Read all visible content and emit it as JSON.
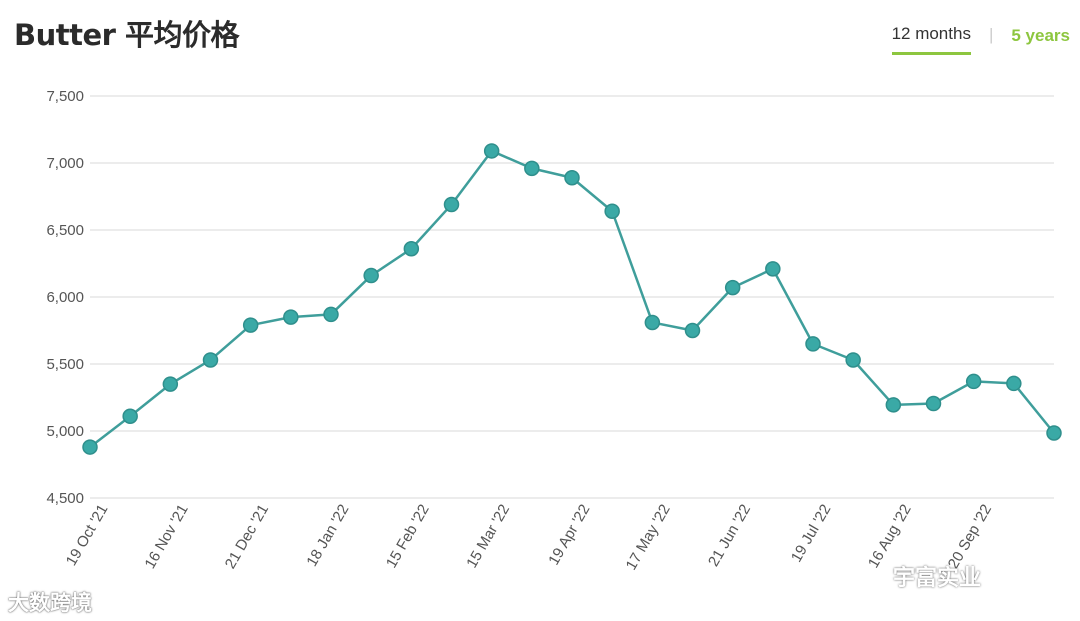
{
  "header": {
    "title": "Butter 平均价格",
    "tabs": [
      {
        "label": "12 months",
        "active": true
      },
      {
        "label": "5 years",
        "active": false
      }
    ]
  },
  "colors": {
    "series": "#3aa9a6",
    "series_line": "#3f9e9b",
    "grid": "#e6e6e6",
    "accent": "#8dc63f"
  },
  "watermarks": {
    "left": "大数跨境",
    "right": "宇富实业"
  },
  "chart_data": {
    "type": "line",
    "title": "Butter 平均价格",
    "xlabel": "",
    "ylabel": "",
    "ylim": [
      4500,
      7500
    ],
    "yticks": [
      4500,
      5000,
      5500,
      6000,
      6500,
      7000,
      7500
    ],
    "ytick_labels": [
      "4,500",
      "5,000",
      "5,500",
      "6,000",
      "6,500",
      "7,000",
      "7,500"
    ],
    "xtick_labels": [
      "19 Oct '21",
      "16 Nov '21",
      "21 Dec '21",
      "18 Jan '22",
      "15 Feb '22",
      "15 Mar '22",
      "19 Apr '22",
      "17 May '22",
      "21 Jun '22",
      "19 Jul '22",
      "16 Aug '22",
      "20 Sep '22"
    ],
    "grid": true,
    "series": [
      {
        "values": [
          4880,
          5110,
          5350,
          5530,
          5790,
          5850,
          5870,
          6160,
          6360,
          6690,
          7090,
          6960,
          6890,
          6640,
          5810,
          5750,
          6070,
          6210,
          5650,
          5530,
          5195,
          5205,
          5370,
          5355,
          4985
        ]
      }
    ]
  }
}
